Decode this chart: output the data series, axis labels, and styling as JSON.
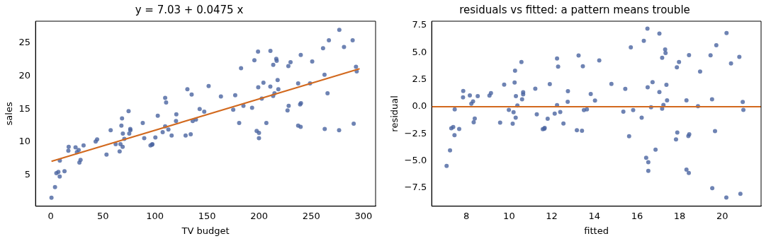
{
  "chart_data": [
    {
      "type": "scatter",
      "title": "y = 7.03 + 0.0475 x",
      "xlabel": "TV budget",
      "ylabel": "sales",
      "xlim": [
        -14.6,
        311.7
      ],
      "ylim": [
        0.3,
        28.3
      ],
      "xticks": [
        0,
        50,
        100,
        150,
        200,
        250,
        300
      ],
      "yticks": [
        5,
        10,
        15,
        20,
        25
      ],
      "grid": false,
      "legend": false,
      "series": [
        {
          "type": "scatter",
          "marker": "circle",
          "color": "#4a64a0",
          "x": [
            230.1,
            44.5,
            17.2,
            151.5,
            180.8,
            8.7,
            57.5,
            120.2,
            8.6,
            199.8,
            66.1,
            214.7,
            23.8,
            97.5,
            204.1,
            195.4,
            67.8,
            281.4,
            69.2,
            147.3,
            218.4,
            237.4,
            13.2,
            228.3,
            62.3,
            262.9,
            142.9,
            240.1,
            248.8,
            70.6,
            292.9,
            112.9,
            97.2,
            265.6,
            95.7,
            290.7,
            266.9,
            74.7,
            43.1,
            228,
            202.5,
            177,
            293.6,
            206.9,
            25.1,
            175.1,
            89.7,
            239.9,
            227.2,
            66.9,
            199.8,
            100.4,
            216.4,
            182.6,
            262.7,
            198.9,
            7.3,
            136.2,
            210.8,
            210.7,
            53.5,
            261.3,
            239.3,
            102.7,
            131.1,
            69,
            31.5,
            139.3,
            237.4,
            216.8,
            199.1,
            109.8,
            26.8,
            129.4,
            213.4,
            16.9,
            27.5,
            120.5,
            5.4,
            116,
            76.4,
            239.8,
            75.3,
            68.4,
            213.5,
            193.2,
            76.3,
            110.7,
            88.3,
            109.8,
            134.3,
            28.6,
            217.7,
            250.9,
            107.4,
            163.3,
            197.6,
            184.9,
            289.7,
            135.2,
            0.7,
            4.1,
            276.9,
            276.7
          ],
          "values": [
            22.1,
            10.4,
            9.3,
            18.5,
            12.9,
            7.2,
            11.8,
            13.2,
            4.8,
            10.6,
            8.6,
            17.4,
            9.2,
            9.7,
            19,
            22.4,
            12.5,
            24.4,
            11.3,
            14.6,
            18,
            12.5,
            5.6,
            15.5,
            9.7,
            12,
            15,
            15.9,
            18.9,
            10.5,
            21.4,
            11.9,
            9.6,
            17.4,
            9.5,
            12.8,
            25.4,
            14.7,
            10.1,
            21.5,
            16.6,
            17.1,
            20.7,
            12.9,
            8.5,
            14.9,
            10.6,
            23.2,
            14.8,
            9.7,
            11.4,
            10.7,
            22.6,
            21.2,
            20.2,
            23.7,
            5.5,
            13.2,
            23.8,
            18.4,
            8.1,
            24.2,
            15.7,
            14,
            18,
            9.3,
            9.5,
            13.4,
            18.9,
            22.3,
            18.3,
            12.4,
            8.8,
            11,
            17,
            8.7,
            6.9,
            14.2,
            5.3,
            11,
            11.8,
            12.3,
            11.3,
            13.6,
            21.7,
            15.2,
            12,
            16,
            12.9,
            16.7,
            11.2,
            7.3,
            19.4,
            22.2,
            11.5,
            16.9,
            11.7,
            15.5,
            25.4,
            17.2,
            1.6,
            3.2,
            27,
            11.8
          ]
        },
        {
          "type": "line",
          "marker": "none",
          "color": "#d2691e",
          "x": [
            0.7,
            296.4
          ],
          "values": [
            7.1,
            21.1
          ]
        }
      ]
    },
    {
      "type": "scatter",
      "title": "residuals vs fitted: a pattern means trouble",
      "xlabel": "fitted",
      "ylabel": "residual",
      "xlim": [
        6.37,
        21.82
      ],
      "ylim": [
        -9.2,
        7.9
      ],
      "xticks": [
        8,
        10,
        12,
        14,
        16,
        18,
        20
      ],
      "yticks": [
        {
          "value": -7.5,
          "label": "−7.5"
        },
        {
          "value": -5,
          "label": "−5.0"
        },
        {
          "value": -2.5,
          "label": "−2.5"
        },
        {
          "value": 0,
          "label": "0.0"
        },
        {
          "value": 2.5,
          "label": "2.5"
        },
        {
          "value": 5,
          "label": "5.0"
        },
        {
          "value": 7.5,
          "label": "7.5"
        }
      ],
      "grid": false,
      "legend": false,
      "ref_lines": [
        {
          "axis": "y",
          "value": 0,
          "color": "#d2691e"
        }
      ],
      "series": [
        {
          "type": "scatter",
          "marker": "circle",
          "color": "#4a64a0",
          "x": [
            17.97,
            9.15,
            7.85,
            14.23,
            15.63,
            7.45,
            9.77,
            12.75,
            7.44,
            16.53,
            10.17,
            17.24,
            8.16,
            11.67,
            16.73,
            16.32,
            10.26,
            20.41,
            10.32,
            14.03,
            17.41,
            18.32,
            7.66,
            17.89,
            9.99,
            19.53,
            13.83,
            18.45,
            18.86,
            10.39,
            20.96,
            12.4,
            11.65,
            19.66,
            11.58,
            20.85,
            19.72,
            10.58,
            9.08,
            17.87,
            16.66,
            15.45,
            20.99,
            16.87,
            8.23,
            15.36,
            11.3,
            18.44,
            17.83,
            10.21,
            16.53,
            11.81,
            17.32,
            15.71,
            19.52,
            16.49,
            7.38,
            13.51,
            17.05,
            17.05,
            9.58,
            19.45,
            18.41,
            11.91,
            13.26,
            10.31,
            8.53,
            13.65,
            18.32,
            17.34,
            16.5,
            12.25,
            8.31,
            13.18,
            17.18,
            7.84,
            8.34,
            12.76,
            7.29,
            12.55,
            10.66,
            18.43,
            10.61,
            10.28,
            17.18,
            16.22,
            10.66,
            12.3,
            11.23,
            12.25,
            13.42,
            8.39,
            17.38,
            18.96,
            12.14,
            14.8,
            16.43,
            15.82,
            20.8,
            13.46,
            7.07,
            7.23,
            20.2,
            20.19
          ],
          "values": [
            4.13,
            1.25,
            1.45,
            4.27,
            -2.73,
            -0.25,
            2.03,
            0.45,
            -2.64,
            -5.93,
            -1.57,
            0.16,
            1.04,
            -1.97,
            2.27,
            6.08,
            2.24,
            3.99,
            0.98,
            0.57,
            0.59,
            -5.82,
            -2.06,
            -2.39,
            -0.29,
            -7.53,
            1.17,
            -2.55,
            0.04,
            0.11,
            0.44,
            -0.5,
            -2.05,
            -2.26,
            -2.08,
            -8.05,
            5.68,
            4.12,
            1.02,
            3.63,
            -0.06,
            1.65,
            -0.29,
            -3.97,
            0.27,
            -0.46,
            -0.7,
            4.76,
            -3.03,
            -0.51,
            -5.13,
            -1.11,
            5.28,
            5.49,
            0.68,
            7.21,
            -1.88,
            -0.31,
            6.75,
            1.35,
            -1.48,
            4.75,
            -2.71,
            2.09,
            4.74,
            -1.01,
            0.97,
            -0.25,
            0.58,
            4.96,
            1.8,
            0.15,
            0.49,
            -2.18,
            -0.18,
            0.86,
            -1.44,
            1.44,
            -1.99,
            -1.55,
            1.14,
            -6.13,
            0.69,
            3.32,
            4.52,
            -1.02,
            1.34,
            3.7,
            1.67,
            4.45,
            -2.22,
            -1.09,
            2.02,
            3.24,
            -0.64,
            2.1,
            -4.73,
            -0.32,
            4.6,
            3.74,
            -5.47,
            -4.03,
            6.8,
            -8.39
          ]
        }
      ]
    }
  ]
}
